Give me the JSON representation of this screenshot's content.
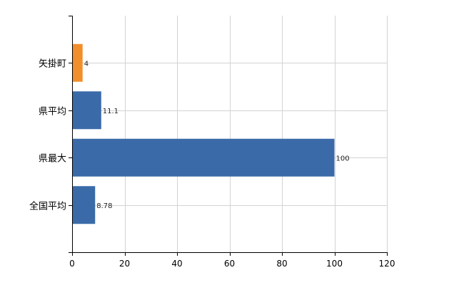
{
  "chart_data": {
    "type": "bar",
    "orientation": "horizontal",
    "categories": [
      "矢掛町",
      "県平均",
      "県最大",
      "全国平均"
    ],
    "values": [
      4,
      11.1,
      100,
      8.78
    ],
    "value_labels": [
      "4",
      "11.1",
      "100",
      "8.78"
    ],
    "bar_colors": [
      "#f28e2b",
      "#3a6aa8",
      "#3a6aa8",
      "#3a6aa8"
    ],
    "title": "",
    "xlabel": "",
    "ylabel": "",
    "xlim": [
      0,
      120
    ],
    "xticks": [
      0,
      20,
      40,
      60,
      80,
      100,
      120
    ],
    "grid": true,
    "legend": "none"
  }
}
